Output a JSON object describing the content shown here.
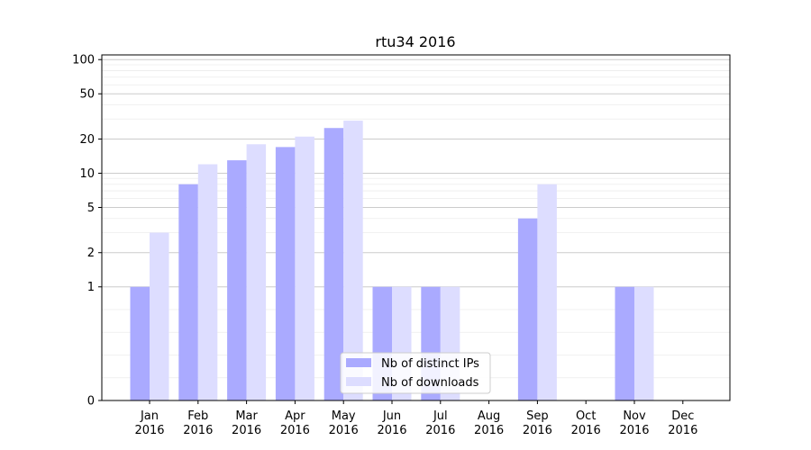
{
  "chart_data": {
    "type": "bar",
    "title": "rtu34 2016",
    "xlabel": "",
    "ylabel": "",
    "yscale": "symlog",
    "ylim": [
      0,
      110
    ],
    "y_ticks": [
      0,
      1,
      2,
      5,
      10,
      20,
      50,
      100
    ],
    "categories": [
      {
        "month": "Jan",
        "year": "2016"
      },
      {
        "month": "Feb",
        "year": "2016"
      },
      {
        "month": "Mar",
        "year": "2016"
      },
      {
        "month": "Apr",
        "year": "2016"
      },
      {
        "month": "May",
        "year": "2016"
      },
      {
        "month": "Jun",
        "year": "2016"
      },
      {
        "month": "Jul",
        "year": "2016"
      },
      {
        "month": "Aug",
        "year": "2016"
      },
      {
        "month": "Sep",
        "year": "2016"
      },
      {
        "month": "Oct",
        "year": "2016"
      },
      {
        "month": "Nov",
        "year": "2016"
      },
      {
        "month": "Dec",
        "year": "2016"
      }
    ],
    "series": [
      {
        "name": "Nb of distinct IPs",
        "color": "#aaaaff",
        "values": [
          1,
          8,
          13,
          17,
          25,
          1,
          1,
          0,
          4,
          0,
          1,
          0
        ]
      },
      {
        "name": "Nb of downloads",
        "color": "#ddddff",
        "values": [
          3,
          12,
          18,
          21,
          29,
          1,
          1,
          0,
          8,
          0,
          1,
          0
        ]
      }
    ],
    "grid": true,
    "legend_position": "bottom-center"
  }
}
